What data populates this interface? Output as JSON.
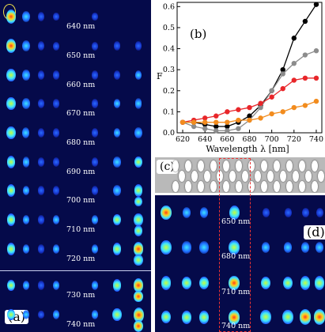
{
  "panel_a": {
    "label": "(a)",
    "wavelengths": [
      "640 nm",
      "650 nm",
      "660 nm",
      "670 nm",
      "680 nm",
      "690 nm",
      "700 nm",
      "710 nm",
      "720 nm",
      "730 nm",
      "740 nm"
    ]
  },
  "panel_b": {
    "label": "(b)"
  },
  "panel_c": {
    "label": "(c)"
  },
  "panel_d": {
    "label": "(d)",
    "wavelengths": [
      "650 nm",
      "680 nm",
      "710 nm",
      "740 nm"
    ]
  },
  "colors": {
    "black": "#000000",
    "gray": "#8c8c8c",
    "red": "#e8262a",
    "orange": "#f28c1e"
  },
  "chart_data": {
    "type": "line",
    "xlabel": "Wavelength λ [nm]",
    "ylabel": "F",
    "xlim": [
      615,
      745
    ],
    "ylim": [
      0,
      0.62
    ],
    "xticks": [
      620,
      640,
      660,
      680,
      700,
      720,
      740
    ],
    "yticks": [
      0.0,
      0.1,
      0.2,
      0.3,
      0.4,
      0.5,
      0.6
    ],
    "grid": false,
    "legend": "none",
    "x": [
      620,
      630,
      640,
      650,
      660,
      670,
      680,
      690,
      700,
      710,
      720,
      730,
      740
    ],
    "series": [
      {
        "color": "black",
        "values": [
          0.05,
          0.05,
          0.04,
          0.03,
          0.03,
          0.05,
          0.08,
          0.13,
          0.2,
          0.3,
          0.45,
          0.53,
          0.61
        ]
      },
      {
        "color": "gray",
        "values": [
          0.05,
          0.03,
          0.02,
          0.01,
          0.01,
          0.02,
          0.06,
          0.12,
          0.2,
          0.28,
          0.33,
          0.37,
          0.39
        ]
      },
      {
        "color": "red",
        "values": [
          0.05,
          0.06,
          0.07,
          0.08,
          0.1,
          0.11,
          0.12,
          0.14,
          0.17,
          0.21,
          0.25,
          0.26,
          0.26
        ]
      },
      {
        "color": "orange",
        "values": [
          0.05,
          0.05,
          0.05,
          0.05,
          0.05,
          0.06,
          0.06,
          0.07,
          0.09,
          0.1,
          0.12,
          0.13,
          0.15
        ]
      }
    ]
  }
}
